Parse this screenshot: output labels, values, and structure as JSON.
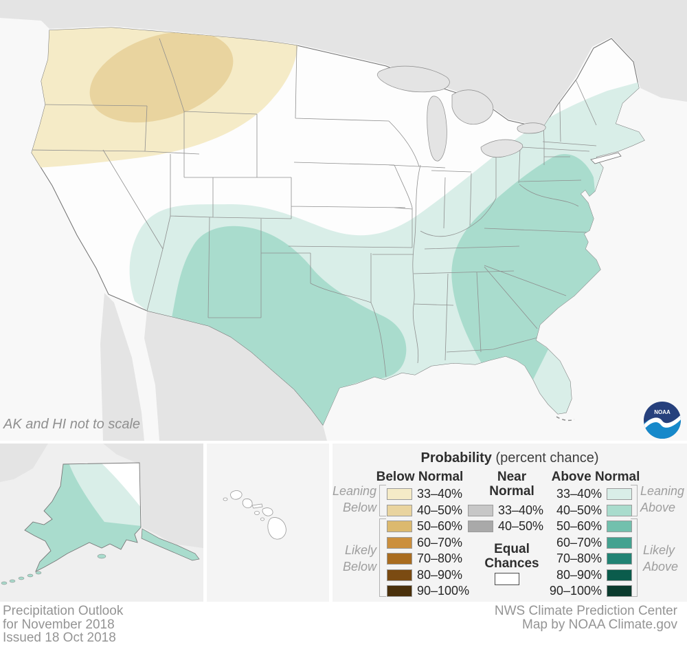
{
  "map": {
    "note": "AK and HI not to scale",
    "logo_text": "NOAA"
  },
  "legend": {
    "title_bold": "Probability",
    "title_rest": " (percent chance)",
    "below": {
      "header": "Below Normal",
      "ranges": [
        "33–40%",
        "40–50%",
        "50–60%",
        "60–70%",
        "70–80%",
        "80–90%",
        "90–100%"
      ],
      "leaning": [
        "Leaning",
        "Below"
      ],
      "likely": [
        "Likely",
        "Below"
      ]
    },
    "near": {
      "header": [
        "Near",
        "Normal"
      ],
      "ranges": [
        "33–40%",
        "40–50%"
      ],
      "equal": [
        "Equal",
        "Chances"
      ]
    },
    "above": {
      "header": "Above Normal",
      "ranges": [
        "33–40%",
        "40–50%",
        "50–60%",
        "60–70%",
        "70–80%",
        "80–90%",
        "90–100%"
      ],
      "leaning": [
        "Leaning",
        "Above"
      ],
      "likely": [
        "Likely",
        "Above"
      ]
    }
  },
  "colors": {
    "below": [
      "#f5ebc7",
      "#e9d49f",
      "#dcb96e",
      "#cb8f3d",
      "#a96c1f",
      "#7b4b12",
      "#4a300b"
    ],
    "near": [
      "#c7c7c7",
      "#a9a9a9"
    ],
    "above": [
      "#d9eee8",
      "#a9dccd",
      "#72c0ad",
      "#43a290",
      "#218374",
      "#0b5c4c",
      "#0b3b2e"
    ],
    "equal": "#ffffff",
    "ocean": "#f8f8f8",
    "land_other": "#e4e4e4",
    "us": "#fdfdfd",
    "logo_navy": "#26407c",
    "logo_blue": "#1789ca"
  },
  "footer": {
    "left": [
      "Precipitation Outlook",
      "for November 2018",
      "Issued 18 Oct 2018"
    ],
    "right": [
      "NWS Climate Prediction Center",
      "Map by NOAA Climate.gov"
    ]
  }
}
